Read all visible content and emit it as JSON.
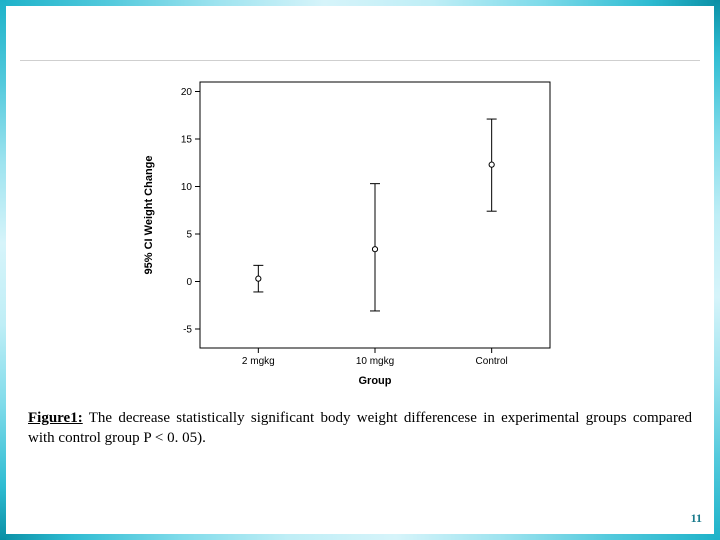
{
  "slide": {
    "page_number": "11"
  },
  "caption": {
    "label": "Figure1:",
    "text": "The decrease  statistically  significant body weight differencese in experimental groups  compared  with control group P < 0. 05)."
  },
  "chart": {
    "type": "errorbar",
    "background_color": "#ffffff",
    "axis_color": "#000000",
    "tick_color": "#000000",
    "marker_fill": "#ffffff",
    "marker_stroke": "#000000",
    "bar_color": "#000000",
    "marker_radius": 2.6,
    "line_width": 1,
    "cap_half_width": 5,
    "xlabel": "Group",
    "ylabel": "95% CI Weight Change",
    "label_fontsize": 11,
    "tick_fontsize": 10,
    "categories": [
      "2 mgkg",
      "10 mgkg",
      "Control"
    ],
    "series": [
      {
        "x": 0,
        "mean": 0.3,
        "low": -1.1,
        "high": 1.7
      },
      {
        "x": 1,
        "mean": 3.4,
        "low": -3.1,
        "high": 10.3
      },
      {
        "x": 2,
        "mean": 12.3,
        "low": 7.4,
        "high": 17.1
      }
    ],
    "ylim": [
      -7,
      21
    ],
    "yticks": [
      -5,
      0,
      5,
      10,
      15,
      20
    ]
  },
  "style": {
    "border_gradient_colors": [
      "#1db2c9",
      "#52c9dc",
      "#9de3ef",
      "#d6f4fa",
      "#bfeef6",
      "#7fdbea",
      "#2fbcd2",
      "#0a8fa5"
    ],
    "rule_color": "#cfcfcf",
    "caption_font": "Georgia, serif",
    "caption_fontsize": 15
  }
}
